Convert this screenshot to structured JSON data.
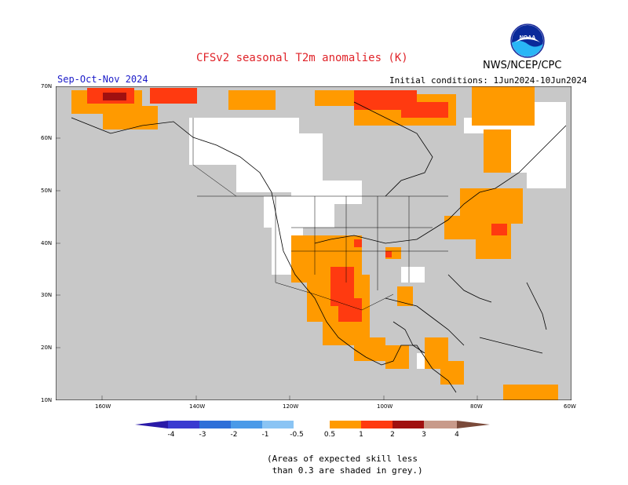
{
  "title": "CFSv2 seasonal T2m anomalies (K)",
  "agency": "NWS/NCEP/CPC",
  "logo_text": "NOAA",
  "season": "Sep-Oct-Nov 2024",
  "initial_conditions": "Initial conditions: 1Jun2024-10Jun2024",
  "lat_labels": [
    "70N",
    "60N",
    "50N",
    "40N",
    "30N",
    "20N",
    "10N"
  ],
  "lon_labels": [
    "160W",
    "140W",
    "120W",
    "100W",
    "80W",
    "60W"
  ],
  "colorbar": {
    "labels": [
      "-4",
      "-3",
      "-2",
      "-1",
      "-0.5",
      "0.5",
      "1",
      "2",
      "3",
      "4"
    ],
    "colors": [
      "#2a1aa8",
      "#3a3ad0",
      "#2e6fd8",
      "#4a9ae8",
      "#8ac4f4",
      "#ffffff",
      "#ff9a00",
      "#ff3a10",
      "#a01010",
      "#c89a8a",
      "#7a4a3a"
    ]
  },
  "map_colors": {
    "grey": "#c8c8c8",
    "white": "#ffffff",
    "orange": "#ff9a00",
    "red": "#ff3a10",
    "darkred": "#a01010"
  },
  "note": "(Areas of expected skill less\n than 0.3 are shaded in grey.)"
}
